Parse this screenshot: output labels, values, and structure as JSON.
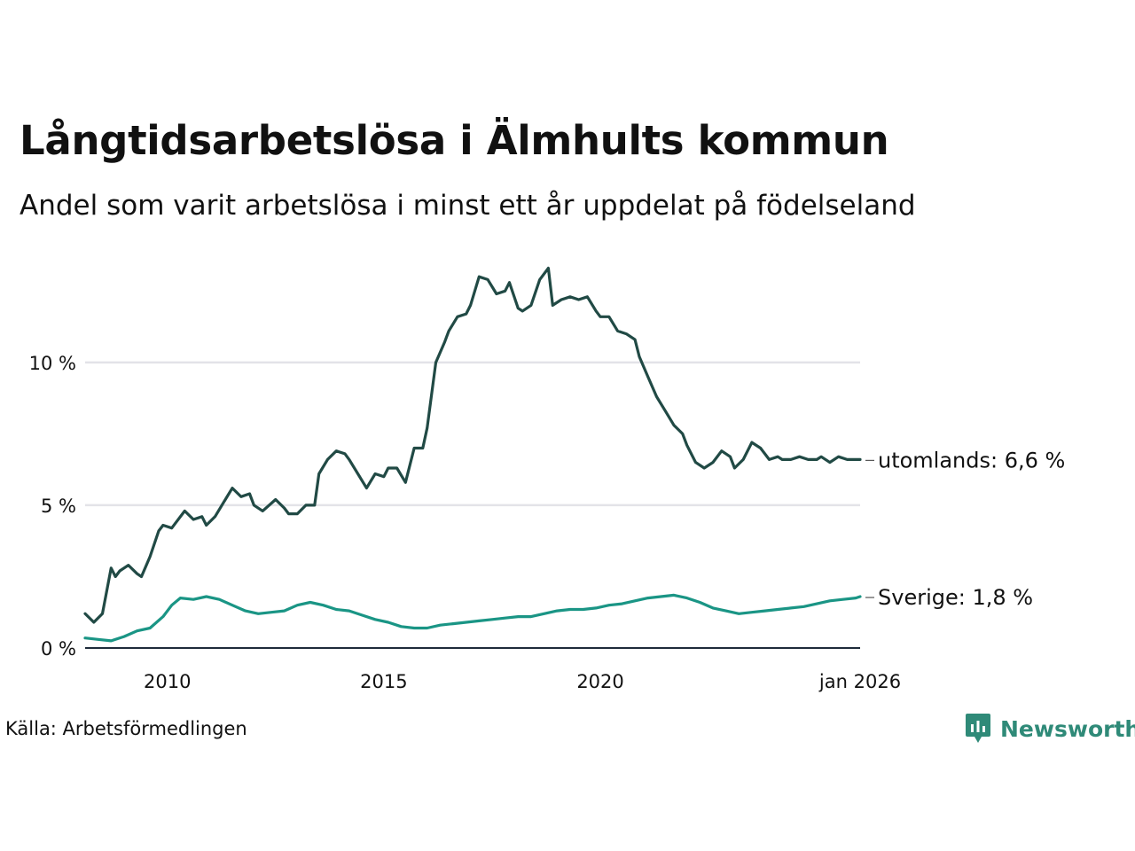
{
  "title": "Långtidsarbetslösa i Älmhults kommun",
  "subtitle": "Andel som varit arbetslösa i minst ett år uppdelat på födelseland",
  "source": "Källa: Arbetsförmedlingen",
  "brand": {
    "name": "Newsworthy",
    "icon": "newsworthy-logo-icon",
    "color": "#2f8a78"
  },
  "colors": {
    "utomlands": "#214a45",
    "sverige": "#1a9585",
    "grid": "#e3e3e8"
  },
  "chart_data": {
    "type": "line",
    "title": "Långtidsarbetslösa i Älmhults kommun",
    "subtitle": "Andel som varit arbetslösa i minst ett år uppdelat på födelseland",
    "xlabel": "",
    "ylabel": "",
    "xlim": [
      2008.1,
      2026.0
    ],
    "ylim": [
      0,
      13.5
    ],
    "grid": true,
    "y_ticks": [
      {
        "value": 0,
        "label": "0 %"
      },
      {
        "value": 5,
        "label": "5 %"
      },
      {
        "value": 10,
        "label": "10 %"
      }
    ],
    "x_ticks": [
      {
        "value": 2010,
        "label": "2010"
      },
      {
        "value": 2015,
        "label": "2015"
      },
      {
        "value": 2020,
        "label": "2020"
      },
      {
        "value": 2026.0,
        "label": "jan 2026"
      }
    ],
    "series": [
      {
        "name": "utomlands",
        "end_label": "utomlands: 6,6 %",
        "color": "#214a45",
        "x": [
          2008.1,
          2008.3,
          2008.5,
          2008.7,
          2008.8,
          2008.9,
          2009.1,
          2009.3,
          2009.4,
          2009.6,
          2009.8,
          2009.9,
          2010.1,
          2010.2,
          2010.4,
          2010.6,
          2010.8,
          2010.9,
          2011.1,
          2011.3,
          2011.5,
          2011.7,
          2011.9,
          2012.0,
          2012.2,
          2012.5,
          2012.7,
          2012.8,
          2013.0,
          2013.2,
          2013.4,
          2013.5,
          2013.7,
          2013.9,
          2014.1,
          2014.2,
          2014.4,
          2014.6,
          2014.8,
          2015.0,
          2015.1,
          2015.3,
          2015.5,
          2015.7,
          2015.9,
          2016.0,
          2016.2,
          2016.4,
          2016.5,
          2016.7,
          2016.9,
          2017.0,
          2017.2,
          2017.4,
          2017.6,
          2017.8,
          2017.9,
          2018.1,
          2018.2,
          2018.4,
          2018.6,
          2018.8,
          2018.9,
          2019.1,
          2019.3,
          2019.5,
          2019.7,
          2019.9,
          2020.0,
          2020.2,
          2020.4,
          2020.6,
          2020.8,
          2020.9,
          2021.1,
          2021.3,
          2021.5,
          2021.7,
          2021.9,
          2022.0,
          2022.2,
          2022.4,
          2022.6,
          2022.8,
          2023.0,
          2023.1,
          2023.3,
          2023.5,
          2023.7,
          2023.9,
          2024.1,
          2024.2,
          2024.4,
          2024.6,
          2024.8,
          2025.0,
          2025.1,
          2025.3,
          2025.5,
          2025.7,
          2025.9,
          2026.0
        ],
        "values": [
          1.2,
          0.9,
          1.2,
          2.8,
          2.5,
          2.7,
          2.9,
          2.6,
          2.5,
          3.2,
          4.1,
          4.3,
          4.2,
          4.4,
          4.8,
          4.5,
          4.6,
          4.3,
          4.6,
          5.1,
          5.6,
          5.3,
          5.4,
          5.0,
          4.8,
          5.2,
          4.9,
          4.7,
          4.7,
          5.0,
          5.0,
          6.1,
          6.6,
          6.9,
          6.8,
          6.6,
          6.1,
          5.6,
          6.1,
          6.0,
          6.3,
          6.3,
          5.8,
          7.0,
          7.0,
          7.7,
          10.0,
          10.7,
          11.1,
          11.6,
          11.7,
          12.0,
          13.0,
          12.9,
          12.4,
          12.5,
          12.8,
          11.9,
          11.8,
          12.0,
          12.9,
          13.3,
          12.0,
          12.2,
          12.3,
          12.2,
          12.3,
          11.8,
          11.6,
          11.6,
          11.1,
          11.0,
          10.8,
          10.2,
          9.5,
          8.8,
          8.3,
          7.8,
          7.5,
          7.1,
          6.5,
          6.3,
          6.5,
          6.9,
          6.7,
          6.3,
          6.6,
          7.2,
          7.0,
          6.6,
          6.7,
          6.6,
          6.6,
          6.7,
          6.6,
          6.6,
          6.7,
          6.5,
          6.7,
          6.6,
          6.6,
          6.6
        ]
      },
      {
        "name": "Sverige",
        "end_label": "Sverige: 1,8 %",
        "color": "#1a9585",
        "x": [
          2008.1,
          2008.4,
          2008.7,
          2009.0,
          2009.3,
          2009.6,
          2009.9,
          2010.1,
          2010.3,
          2010.6,
          2010.9,
          2011.2,
          2011.5,
          2011.8,
          2012.1,
          2012.4,
          2012.7,
          2013.0,
          2013.3,
          2013.6,
          2013.9,
          2014.2,
          2014.5,
          2014.8,
          2015.1,
          2015.4,
          2015.7,
          2016.0,
          2016.3,
          2016.6,
          2016.9,
          2017.2,
          2017.5,
          2017.8,
          2018.1,
          2018.4,
          2018.7,
          2019.0,
          2019.3,
          2019.6,
          2019.9,
          2020.2,
          2020.5,
          2020.8,
          2021.1,
          2021.4,
          2021.7,
          2022.0,
          2022.3,
          2022.6,
          2022.9,
          2023.2,
          2023.5,
          2023.8,
          2024.1,
          2024.4,
          2024.7,
          2025.0,
          2025.3,
          2025.6,
          2025.9,
          2026.0
        ],
        "values": [
          0.35,
          0.3,
          0.25,
          0.4,
          0.6,
          0.7,
          1.1,
          1.5,
          1.75,
          1.7,
          1.8,
          1.7,
          1.5,
          1.3,
          1.2,
          1.25,
          1.3,
          1.5,
          1.6,
          1.5,
          1.35,
          1.3,
          1.15,
          1.0,
          0.9,
          0.75,
          0.7,
          0.7,
          0.8,
          0.85,
          0.9,
          0.95,
          1.0,
          1.05,
          1.1,
          1.1,
          1.2,
          1.3,
          1.35,
          1.35,
          1.4,
          1.5,
          1.55,
          1.65,
          1.75,
          1.8,
          1.85,
          1.75,
          1.6,
          1.4,
          1.3,
          1.2,
          1.25,
          1.3,
          1.35,
          1.4,
          1.45,
          1.55,
          1.65,
          1.7,
          1.75,
          1.8
        ]
      }
    ]
  }
}
